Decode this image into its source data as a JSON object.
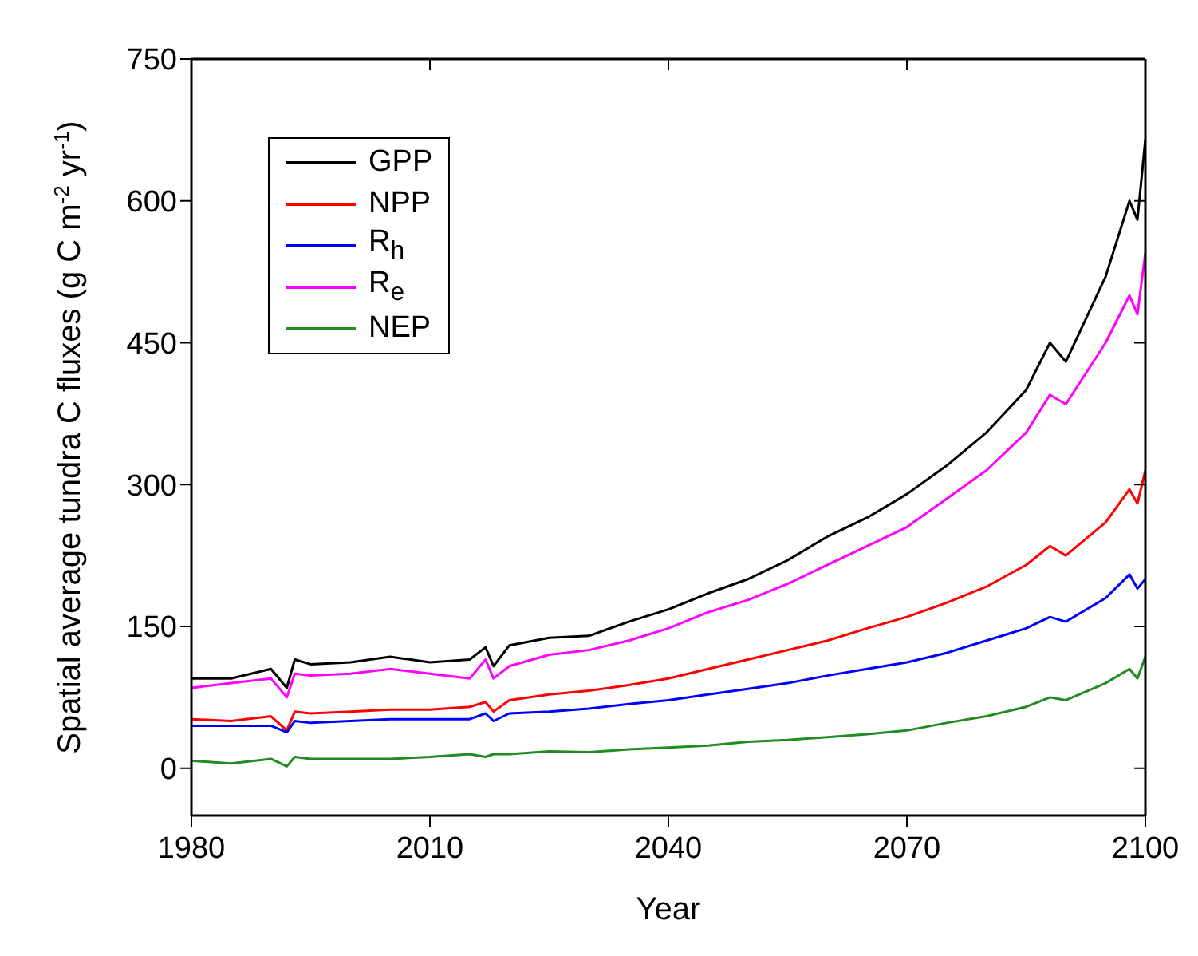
{
  "chart_data": {
    "type": "line",
    "xlabel": "Year",
    "ylabel": "Spatial average tundra C fluxes (g C m$^{-2}$ yr$^{-1}$)",
    "x": [
      1980,
      1985,
      1990,
      1992,
      1993,
      1995,
      2000,
      2005,
      2010,
      2015,
      2017,
      2018,
      2020,
      2025,
      2030,
      2035,
      2040,
      2045,
      2050,
      2055,
      2060,
      2065,
      2070,
      2075,
      2080,
      2085,
      2088,
      2090,
      2095,
      2098,
      2099,
      2100
    ],
    "series": [
      {
        "name": "GPP",
        "color": "#000000",
        "values": [
          95,
          95,
          105,
          85,
          115,
          110,
          112,
          118,
          112,
          115,
          128,
          108,
          130,
          138,
          140,
          155,
          168,
          185,
          200,
          220,
          245,
          265,
          290,
          320,
          355,
          400,
          450,
          430,
          520,
          600,
          580,
          665
        ]
      },
      {
        "name": "NPP",
        "color": "#ff0000",
        "values": [
          52,
          50,
          55,
          40,
          60,
          58,
          60,
          62,
          62,
          65,
          70,
          60,
          72,
          78,
          82,
          88,
          95,
          105,
          115,
          125,
          135,
          148,
          160,
          175,
          192,
          215,
          235,
          225,
          260,
          295,
          280,
          315
        ]
      },
      {
        "name": "R$_{h}$",
        "color": "#0000ff",
        "values": [
          45,
          45,
          45,
          38,
          50,
          48,
          50,
          52,
          52,
          52,
          58,
          50,
          58,
          60,
          63,
          68,
          72,
          78,
          84,
          90,
          98,
          105,
          112,
          122,
          135,
          148,
          160,
          155,
          180,
          205,
          190,
          200
        ]
      },
      {
        "name": "R$_{e}$",
        "color": "#ff00ff",
        "values": [
          85,
          90,
          95,
          75,
          100,
          98,
          100,
          105,
          100,
          95,
          115,
          95,
          108,
          120,
          125,
          135,
          148,
          165,
          178,
          195,
          215,
          235,
          255,
          285,
          315,
          355,
          395,
          385,
          450,
          500,
          480,
          545
        ]
      },
      {
        "name": "NEP",
        "color": "#228b22",
        "values": [
          8,
          5,
          10,
          2,
          12,
          10,
          10,
          10,
          12,
          15,
          12,
          15,
          15,
          18,
          17,
          20,
          22,
          24,
          28,
          30,
          33,
          36,
          40,
          48,
          55,
          65,
          75,
          72,
          90,
          105,
          95,
          118
        ]
      }
    ],
    "xlim": [
      1980,
      2100
    ],
    "xticks": [
      1980,
      2010,
      2040,
      2070,
      2100
    ],
    "ylim": [
      -50,
      750
    ],
    "yticks": [
      0,
      150,
      300,
      450,
      600,
      750
    ],
    "grid": false,
    "legend": "top left",
    "marker": "none",
    "line_style": "solid"
  }
}
